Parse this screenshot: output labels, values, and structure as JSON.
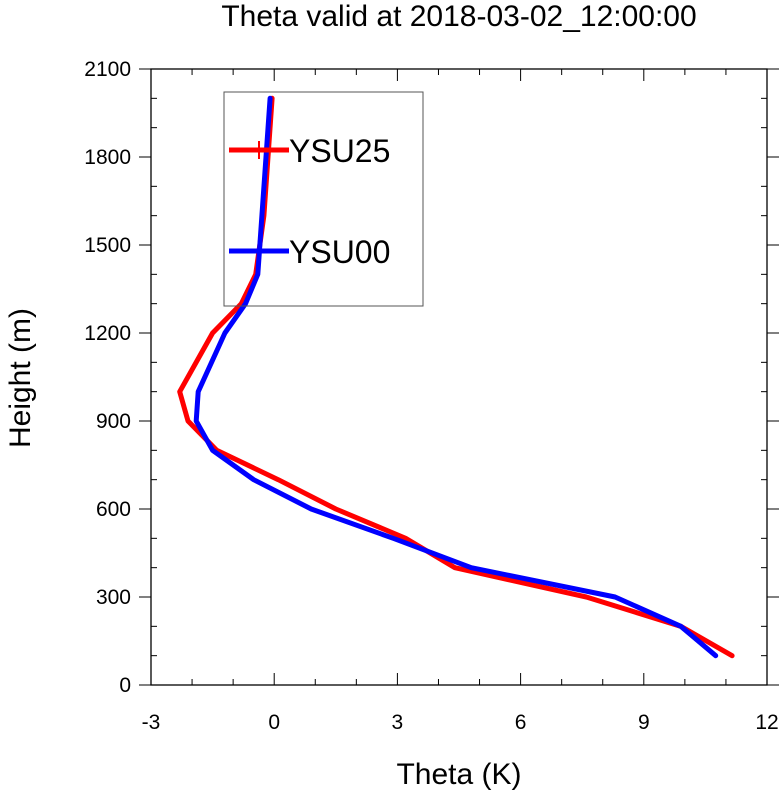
{
  "chart_data": {
    "type": "line",
    "title": "Theta valid at 2018-03-02_12:00:00",
    "xlabel": "Theta (K)",
    "ylabel": "Height (m)",
    "xlim": [
      -3,
      12
    ],
    "ylim": [
      0,
      2100
    ],
    "xticks": [
      -3,
      0,
      3,
      6,
      9,
      12
    ],
    "yticks": [
      0,
      300,
      600,
      900,
      1200,
      1500,
      1800,
      2100
    ],
    "xtick_labels": [
      "-3",
      "0",
      "3",
      "6",
      "9",
      "12"
    ],
    "ytick_labels": [
      "0",
      "300",
      "600",
      "900",
      "1200",
      "1500",
      "1800",
      "2100"
    ],
    "x_minor_step": 1,
    "y_minor_step": 100,
    "grid": false,
    "legend_position": "top-left (inside plot)",
    "series": [
      {
        "name": "YSU25",
        "color": "#ff0000",
        "points": [
          {
            "x": -0.05,
            "y": 2000
          },
          {
            "x": -0.15,
            "y": 1800
          },
          {
            "x": -0.25,
            "y": 1600
          },
          {
            "x": -0.45,
            "y": 1400
          },
          {
            "x": -0.8,
            "y": 1300
          },
          {
            "x": -1.5,
            "y": 1200
          },
          {
            "x": -2.3,
            "y": 1000
          },
          {
            "x": -2.1,
            "y": 900
          },
          {
            "x": -1.4,
            "y": 800
          },
          {
            "x": 0.1,
            "y": 700
          },
          {
            "x": 1.5,
            "y": 600
          },
          {
            "x": 3.2,
            "y": 500
          },
          {
            "x": 4.4,
            "y": 400
          },
          {
            "x": 7.6,
            "y": 300
          },
          {
            "x": 9.9,
            "y": 200
          },
          {
            "x": 11.15,
            "y": 100
          }
        ]
      },
      {
        "name": "YSU00",
        "color": "#0000ff",
        "points": [
          {
            "x": -0.1,
            "y": 2000
          },
          {
            "x": -0.2,
            "y": 1800
          },
          {
            "x": -0.3,
            "y": 1600
          },
          {
            "x": -0.4,
            "y": 1400
          },
          {
            "x": -0.7,
            "y": 1300
          },
          {
            "x": -1.2,
            "y": 1200
          },
          {
            "x": -1.85,
            "y": 1000
          },
          {
            "x": -1.9,
            "y": 900
          },
          {
            "x": -1.5,
            "y": 800
          },
          {
            "x": -0.5,
            "y": 700
          },
          {
            "x": 0.9,
            "y": 600
          },
          {
            "x": 2.9,
            "y": 500
          },
          {
            "x": 4.8,
            "y": 400
          },
          {
            "x": 8.3,
            "y": 300
          },
          {
            "x": 9.9,
            "y": 200
          },
          {
            "x": 10.75,
            "y": 100
          }
        ]
      }
    ]
  }
}
